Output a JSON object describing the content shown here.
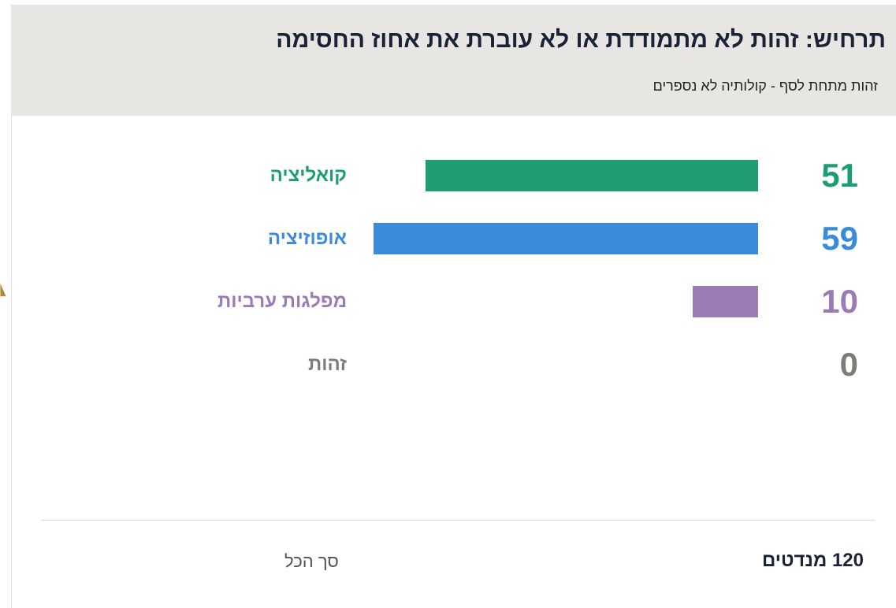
{
  "header": {
    "title": "תרחיש: זהות לא מתמודדת או לא עוברת את אחוז החסימה",
    "subtitle": "זהות מתחת לסף - קולותיה לא נספרים"
  },
  "chart_data": {
    "type": "bar",
    "orientation": "horizontal",
    "categories": [
      "קואליציה",
      "אופוזיציה",
      "מפלגות ערביות",
      "זהות"
    ],
    "values": [
      51,
      59,
      10,
      0
    ],
    "colors": [
      "#1e9c74",
      "#3b8bdc",
      "#9b7bb5",
      "#7d7d78"
    ],
    "value_labels": [
      "51",
      "59",
      "10",
      "0"
    ],
    "xlim": [
      0,
      59
    ]
  },
  "total": {
    "value_text": "120 מנדטים",
    "label": "סך הכל"
  },
  "accent_color": "#b08b3a"
}
